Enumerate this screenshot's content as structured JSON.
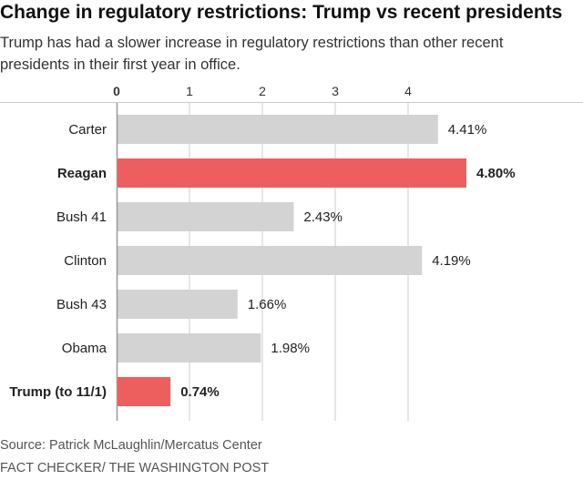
{
  "header": {
    "title": "Change in regulatory restrictions: Trump vs recent presidents",
    "subtitle": "Trump has had a slower increase in regulatory restrictions than other recent presidents in their first year in office."
  },
  "footer": {
    "source": "Source: Patrick McLaughlin/Mercatus Center",
    "credit": "FACT CHECKER/ THE WASHINGTON POST"
  },
  "chart_data": {
    "type": "bar",
    "orientation": "horizontal",
    "categories": [
      "Carter",
      "Reagan",
      "Bush 41",
      "Clinton",
      "Bush 43",
      "Obama",
      "Trump (to 11/1)"
    ],
    "values": [
      4.41,
      4.8,
      2.43,
      4.19,
      1.66,
      1.98,
      0.74
    ],
    "value_labels": [
      "4.41%",
      "4.80%",
      "2.43%",
      "4.19%",
      "1.66%",
      "1.98%",
      "0.74%"
    ],
    "highlighted": [
      false,
      true,
      false,
      false,
      false,
      false,
      true
    ],
    "xlim": [
      0,
      5
    ],
    "xticks": [
      0,
      1,
      2,
      3,
      4
    ],
    "xtick_labels": [
      "0",
      "1",
      "2",
      "3",
      "4"
    ],
    "grid": true,
    "colors": {
      "bar": "#d3d3d3",
      "highlight": "#ed5f5f",
      "grid": "#cccccc",
      "axis": "#999999"
    }
  }
}
